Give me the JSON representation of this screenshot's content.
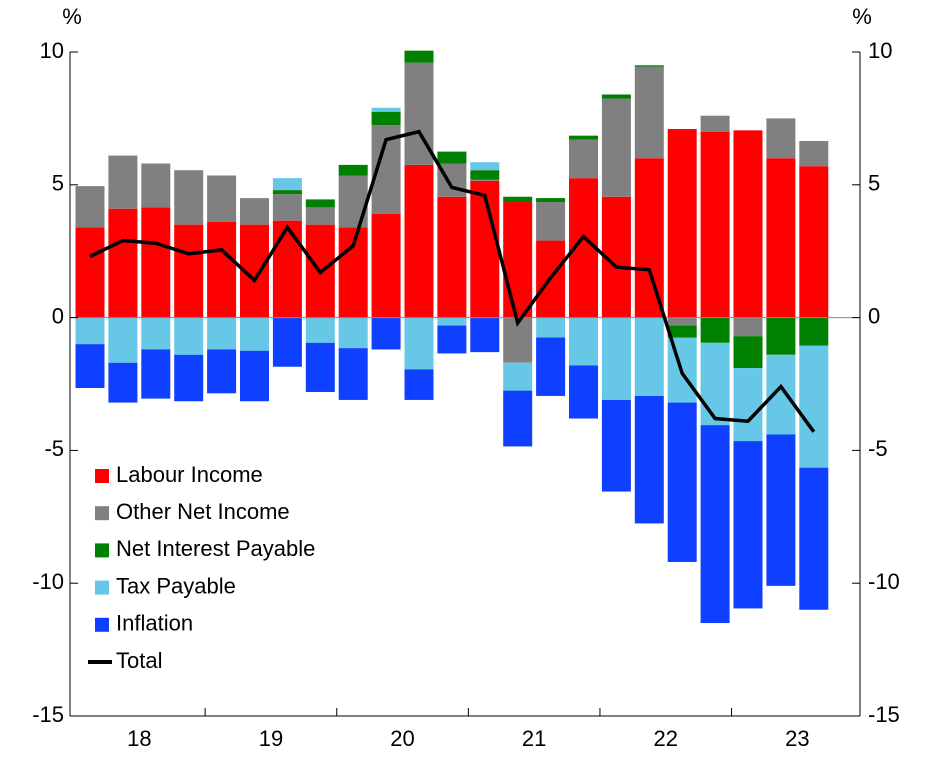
{
  "chart_data": {
    "type": "bar",
    "stacked": true,
    "y_unit_left": "%",
    "y_unit_right": "%",
    "categories": [
      null,
      null,
      null,
      null,
      null,
      null,
      null,
      null,
      null,
      null,
      null,
      null,
      null,
      null,
      null,
      null,
      null,
      null,
      null,
      null,
      null,
      null,
      null
    ],
    "year_labels": [
      "18",
      "19",
      "20",
      "21",
      "22",
      "23"
    ],
    "series": [
      {
        "name": "Labour Income",
        "color": "#ff0000",
        "values": [
          3.4,
          4.1,
          4.15,
          3.5,
          3.6,
          3.5,
          3.65,
          3.5,
          3.4,
          3.9,
          5.75,
          4.55,
          5.15,
          4.35,
          2.9,
          5.25,
          4.55,
          6.0,
          7.1,
          7.0,
          7.05,
          6.0,
          5.7
        ]
      },
      {
        "name": "Other Net Income",
        "color": "#808080",
        "values": [
          1.55,
          2.0,
          1.65,
          2.05,
          1.75,
          1.0,
          1.0,
          0.65,
          1.95,
          3.35,
          3.85,
          1.25,
          0.05,
          -1.7,
          1.45,
          1.45,
          3.7,
          3.45,
          -0.3,
          0.6,
          -0.7,
          1.5,
          0.95
        ]
      },
      {
        "name": "Net Interest Payable",
        "color": "#008000",
        "values": [
          0,
          0,
          0,
          0,
          0,
          0,
          0.15,
          0.3,
          0.4,
          0.5,
          0.45,
          0.45,
          0.35,
          0.2,
          0.15,
          0.15,
          0.15,
          0.05,
          -0.45,
          -0.95,
          -1.2,
          -1.4,
          -1.05
        ]
      },
      {
        "name": "Tax Payable",
        "color": "#66c8e6",
        "values": [
          -1.0,
          -1.7,
          -1.2,
          -1.4,
          -1.2,
          -1.25,
          0.45,
          -0.95,
          -1.15,
          0.15,
          -1.95,
          -0.3,
          0.3,
          -1.05,
          -0.75,
          -1.8,
          -3.1,
          -2.95,
          -2.45,
          -3.1,
          -2.75,
          -3.0,
          -4.6
        ]
      },
      {
        "name": "Inflation",
        "color": "#1040ff",
        "values": [
          -1.65,
          -1.5,
          -1.85,
          -1.75,
          -1.65,
          -1.9,
          -1.85,
          -1.85,
          -1.95,
          -1.2,
          -1.15,
          -1.05,
          -1.3,
          -2.1,
          -2.2,
          -2.0,
          -3.45,
          -4.8,
          -6.0,
          -7.45,
          -6.3,
          -5.7,
          -5.35
        ]
      },
      {
        "name": "Total",
        "color": "#000000",
        "type": "line",
        "values": [
          2.3,
          2.9,
          2.8,
          2.4,
          2.55,
          1.4,
          3.4,
          1.7,
          2.7,
          6.7,
          7.0,
          4.9,
          4.6,
          -0.2,
          1.5,
          3.05,
          1.9,
          1.8,
          -2.1,
          -3.8,
          -3.9,
          -2.6,
          -4.3
        ]
      }
    ],
    "ylim": [
      -15,
      10
    ],
    "yticks": [
      -15,
      -10,
      -5,
      0,
      5,
      10
    ],
    "y2lim": [
      -15,
      10
    ],
    "y2ticks": [
      -15,
      -10,
      -5,
      0,
      5,
      10
    ],
    "legend": "lower left"
  }
}
